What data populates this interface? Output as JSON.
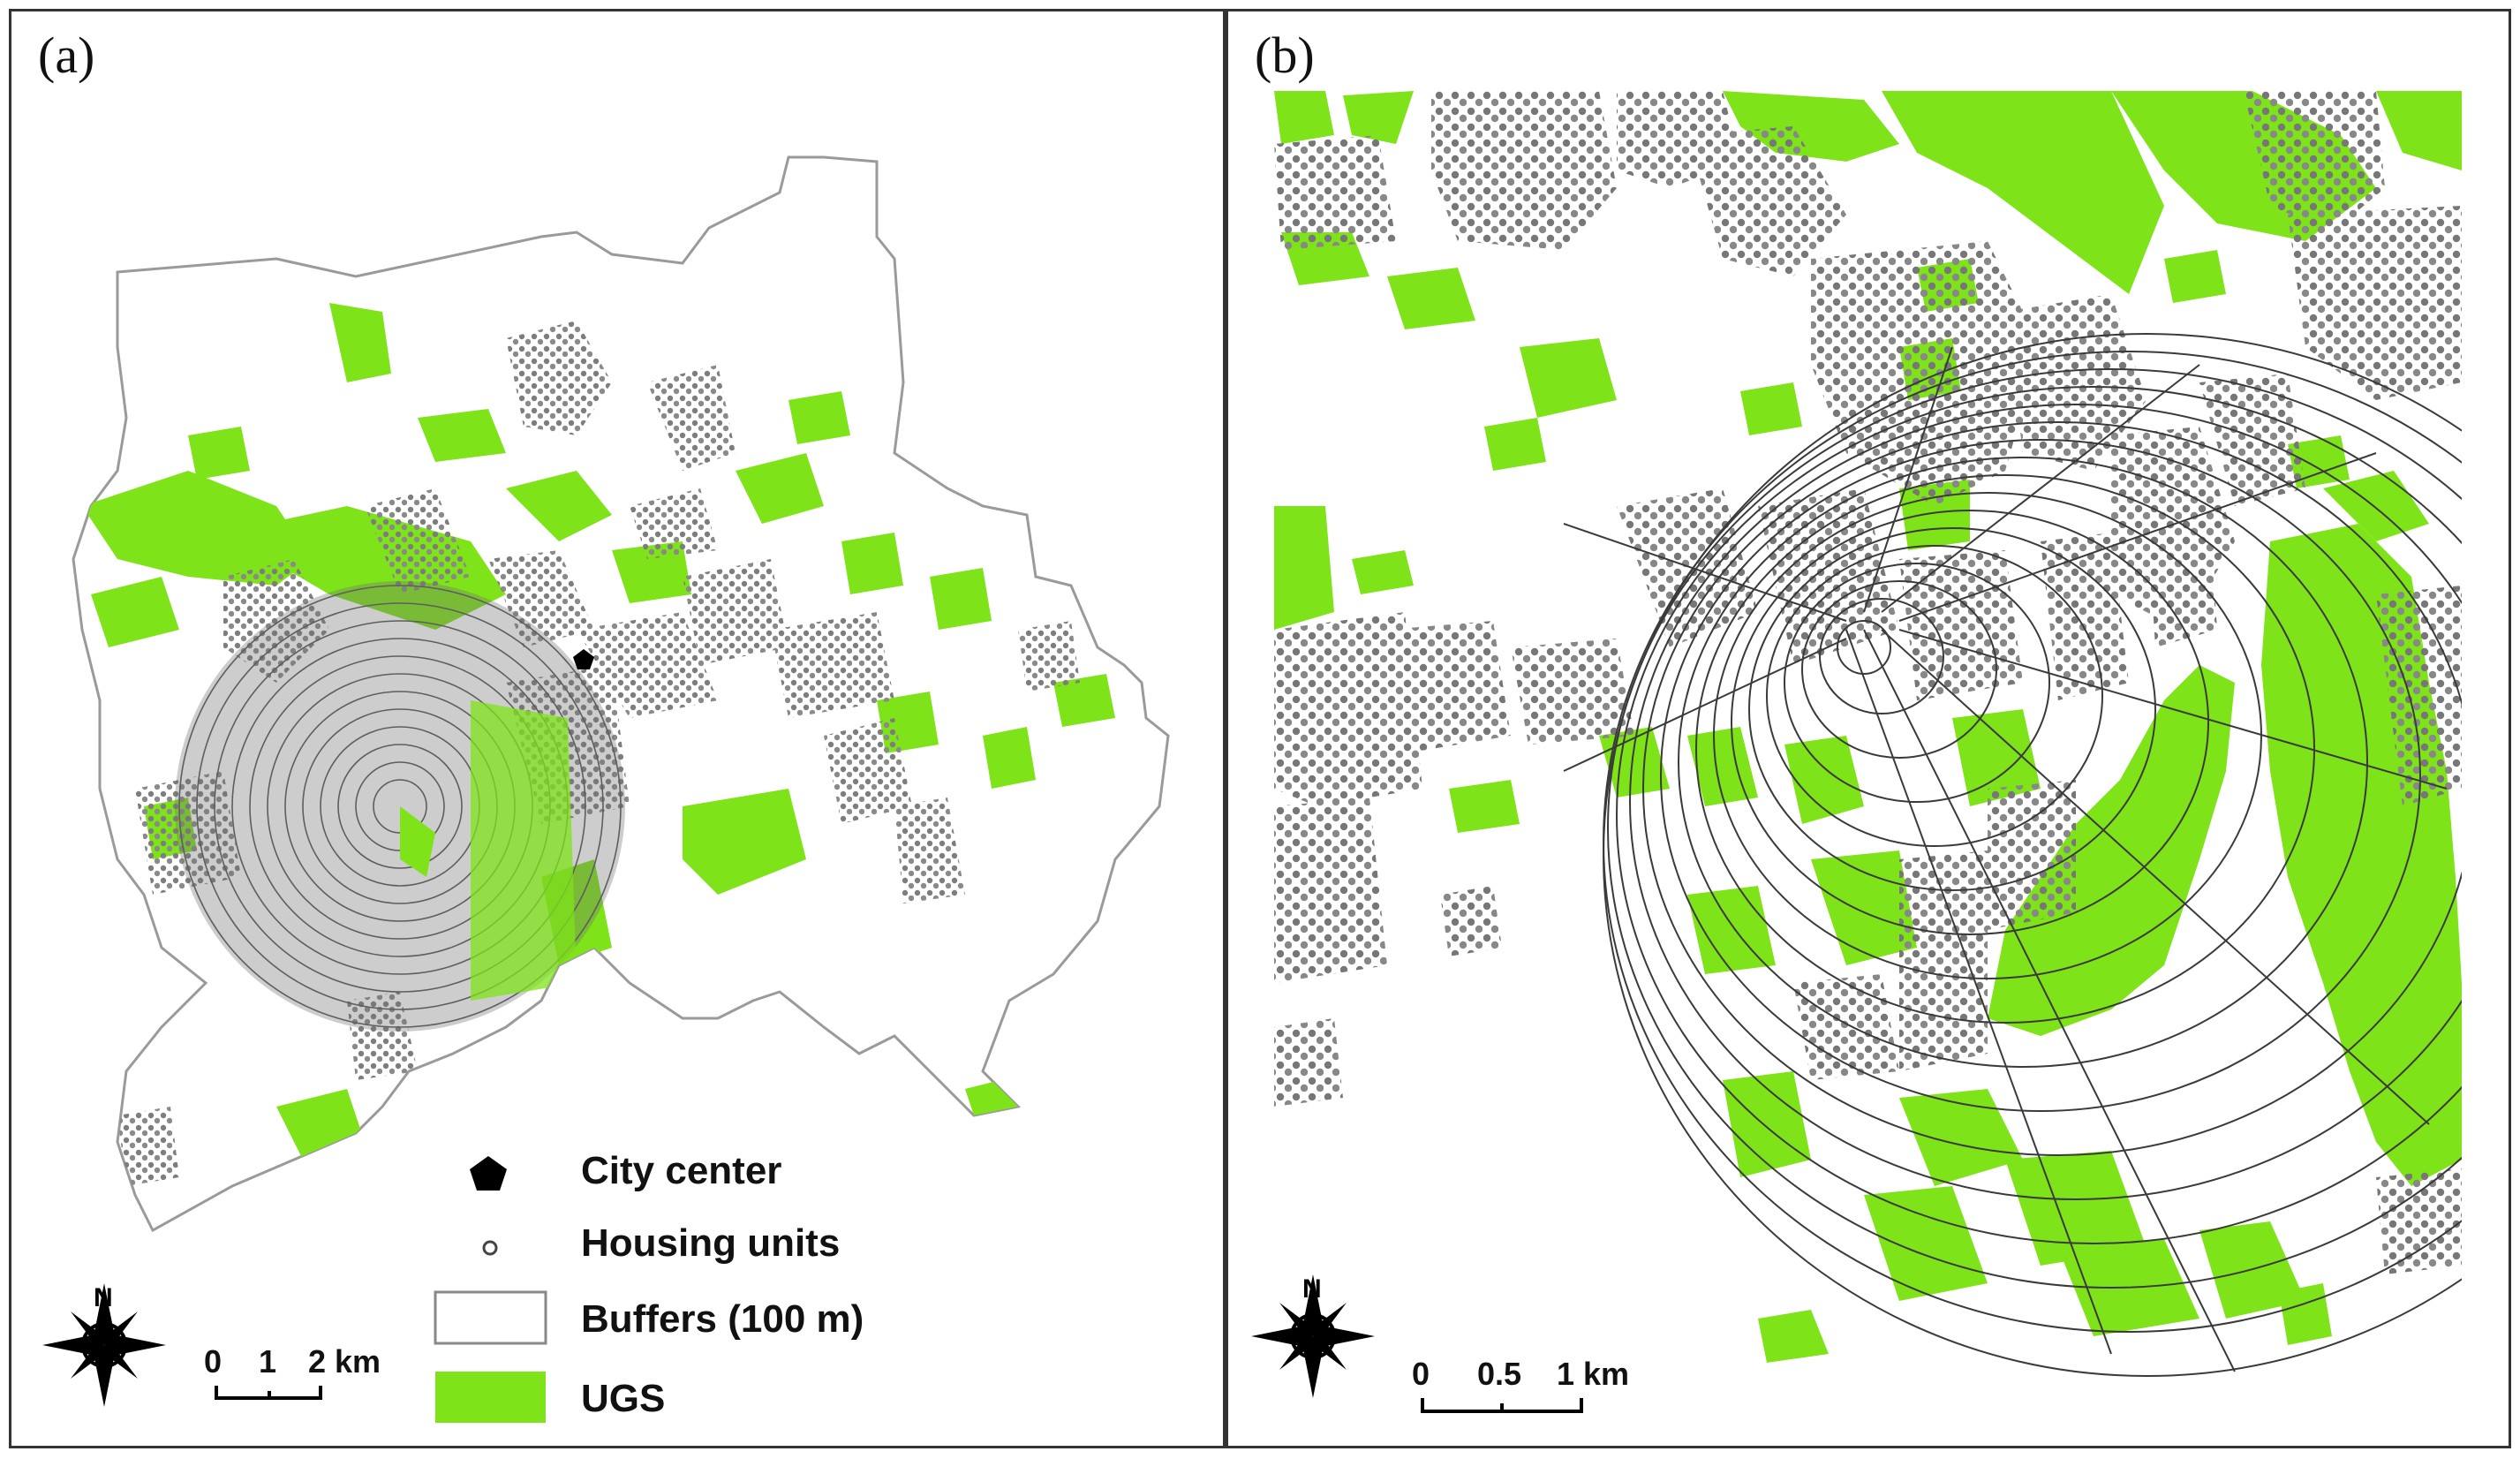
{
  "panels": [
    {
      "label": "(a)",
      "scale_labels": [
        "0",
        "1",
        "2 km"
      ]
    },
    {
      "label": "(b)",
      "scale_labels": [
        "0",
        "0.5",
        "1 km"
      ]
    }
  ],
  "legend": {
    "city_center": "City center",
    "housing_units": "Housing units",
    "buffers": "Buffers (100 m)",
    "ugs": "UGS"
  },
  "north_label": "N",
  "colors": {
    "ugs": "#7fe31a",
    "housing": "#7d7d7d",
    "boundary": "#aaaaaa",
    "buffer_line": "#444444",
    "city_center": "#000000"
  }
}
